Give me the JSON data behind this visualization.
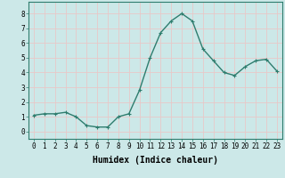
{
  "x": [
    0,
    1,
    2,
    3,
    4,
    5,
    6,
    7,
    8,
    9,
    10,
    11,
    12,
    13,
    14,
    15,
    16,
    17,
    18,
    19,
    20,
    21,
    22,
    23
  ],
  "y": [
    1.1,
    1.2,
    1.2,
    1.3,
    1.0,
    0.4,
    0.3,
    0.3,
    1.0,
    1.2,
    2.8,
    5.0,
    6.7,
    7.5,
    8.0,
    7.5,
    5.6,
    4.8,
    4.0,
    3.8,
    4.4,
    4.8,
    4.9,
    4.1
  ],
  "line_color": "#2e7d6e",
  "marker": "+",
  "marker_size": 3,
  "bg_color": "#cce8e8",
  "grid_color": "#e8c8c8",
  "xlabel": "Humidex (Indice chaleur)",
  "ylim": [
    -0.5,
    8.8
  ],
  "xlim": [
    -0.5,
    23.5
  ],
  "yticks": [
    0,
    1,
    2,
    3,
    4,
    5,
    6,
    7,
    8
  ],
  "xticks": [
    0,
    1,
    2,
    3,
    4,
    5,
    6,
    7,
    8,
    9,
    10,
    11,
    12,
    13,
    14,
    15,
    16,
    17,
    18,
    19,
    20,
    21,
    22,
    23
  ],
  "tick_fontsize": 5.5,
  "xlabel_fontsize": 7,
  "line_width": 1.0
}
